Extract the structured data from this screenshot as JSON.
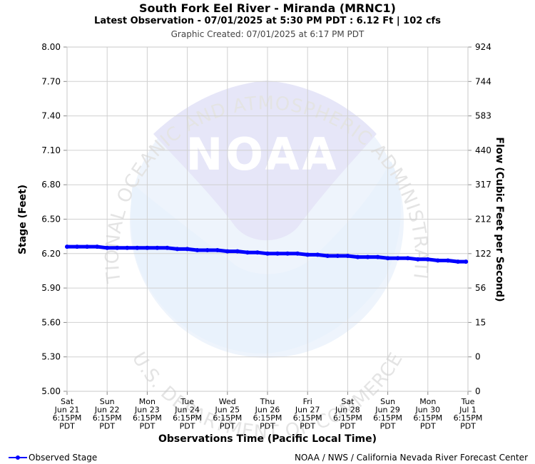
{
  "header": {
    "title": "South Fork Eel River - Miranda (MRNC1)",
    "subtitle": "Latest Observation - 07/01/2025 at 5:30 PM PDT : 6.12 Ft | 102 cfs",
    "created": "Graphic Created: 07/01/2025 at 6:17 PM PDT"
  },
  "footer": {
    "legend_label": "Observed Stage",
    "credit": "NOAA / NWS / California Nevada River Forecast Center"
  },
  "watermark": {
    "logo_text": "NOAA",
    "arc_top": "NATIONAL OCEANIC AND ATMOSPHERIC ADMINISTRATION",
    "arc_bottom": "U.S. DEPARTMENT OF COMMERCE"
  },
  "colors": {
    "series": "#0000ff",
    "grid": "#d0d0d0",
    "watermark_light": "#eef4fc",
    "watermark_mid": "#e6e6f8"
  },
  "chart_data": {
    "type": "line",
    "xlabel": "Observations Time (Pacific Local Time)",
    "ylabel": "Stage (Feet)",
    "y2label": "Flow (Cubic Feet per Second)",
    "ylim": [
      5.0,
      8.0
    ],
    "yticks": [
      5.0,
      5.3,
      5.6,
      5.9,
      6.2,
      6.5,
      6.8,
      7.1,
      7.4,
      7.7,
      8.0
    ],
    "ytick_labels": [
      "5.00",
      "5.30",
      "5.60",
      "5.90",
      "6.20",
      "6.50",
      "6.80",
      "7.10",
      "7.40",
      "7.70",
      "8.00"
    ],
    "y2tick_labels": [
      "0",
      "0",
      "15",
      "56",
      "122",
      "212",
      "317",
      "440",
      "583",
      "744",
      "924"
    ],
    "xlim": [
      0,
      10
    ],
    "xticks": [
      {
        "x": 0,
        "lines": [
          "Sat",
          "Jun 21",
          "6:15PM",
          "PDT"
        ]
      },
      {
        "x": 1,
        "lines": [
          "Sun",
          "Jun 22",
          "6:15PM",
          "PDT"
        ]
      },
      {
        "x": 2,
        "lines": [
          "Mon",
          "Jun 23",
          "6:15PM",
          "PDT"
        ]
      },
      {
        "x": 3,
        "lines": [
          "Tue",
          "Jun 24",
          "6:15PM",
          "PDT"
        ]
      },
      {
        "x": 4,
        "lines": [
          "Wed",
          "Jun 25",
          "6:15PM",
          "PDT"
        ]
      },
      {
        "x": 5,
        "lines": [
          "Thu",
          "Jun 26",
          "6:15PM",
          "PDT"
        ]
      },
      {
        "x": 6,
        "lines": [
          "Fri",
          "Jun 27",
          "6:15PM",
          "PDT"
        ]
      },
      {
        "x": 7,
        "lines": [
          "Sat",
          "Jun 28",
          "6:15PM",
          "PDT"
        ]
      },
      {
        "x": 8,
        "lines": [
          "Sun",
          "Jun 29",
          "6:15PM",
          "PDT"
        ]
      },
      {
        "x": 9,
        "lines": [
          "Mon",
          "Jun 30",
          "6:15PM",
          "PDT"
        ]
      },
      {
        "x": 10,
        "lines": [
          "Tue",
          "Jul 1",
          "6:15PM",
          "PDT"
        ]
      }
    ],
    "grid": true,
    "legend": "bottom-left",
    "series": [
      {
        "name": "Observed Stage",
        "x": [
          0,
          0.25,
          0.5,
          0.75,
          1,
          1.25,
          1.5,
          1.75,
          2,
          2.25,
          2.5,
          2.75,
          3,
          3.25,
          3.5,
          3.75,
          4,
          4.25,
          4.5,
          4.75,
          5,
          5.25,
          5.5,
          5.75,
          6,
          6.25,
          6.5,
          6.75,
          7,
          7.25,
          7.5,
          7.75,
          8,
          8.25,
          8.5,
          8.75,
          9,
          9.25,
          9.5,
          9.75,
          9.95
        ],
        "y": [
          6.26,
          6.26,
          6.26,
          6.26,
          6.25,
          6.25,
          6.25,
          6.25,
          6.25,
          6.25,
          6.25,
          6.24,
          6.24,
          6.23,
          6.23,
          6.23,
          6.22,
          6.22,
          6.21,
          6.21,
          6.2,
          6.2,
          6.2,
          6.2,
          6.19,
          6.19,
          6.18,
          6.18,
          6.18,
          6.17,
          6.17,
          6.17,
          6.16,
          6.16,
          6.16,
          6.15,
          6.15,
          6.14,
          6.14,
          6.13,
          6.13
        ]
      }
    ]
  }
}
